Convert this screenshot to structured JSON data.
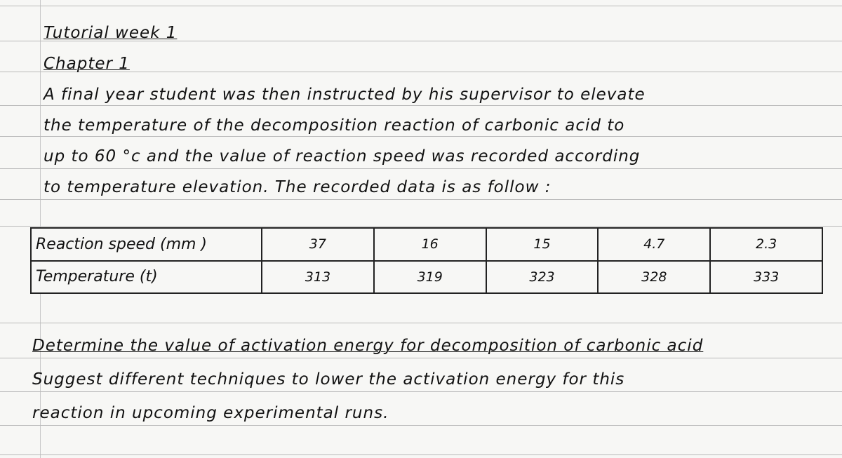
{
  "header": {
    "title": "Tutorial week 1",
    "chapter": "Chapter 1"
  },
  "paragraph": [
    "A final year student was then instructed by his supervisor to elevate",
    "the temperature of the decomposition reaction of carbonic acid to",
    "up to 60 °c and the value of reaction speed was recorded according",
    "to temperature elevation. The recorded data is as follow :"
  ],
  "table": {
    "rows": [
      [
        "Reaction speed (mm )",
        "37",
        "16",
        "15",
        "4.7",
        "2.3"
      ],
      [
        "Temperature (t)",
        "313",
        "319",
        "323",
        "328",
        "333"
      ]
    ]
  },
  "questions": [
    "Determine the value of activation energy for decomposition of carbonic acid",
    "Suggest different techniques to lower the activation energy for this",
    "reaction in upcoming experimental runs."
  ]
}
